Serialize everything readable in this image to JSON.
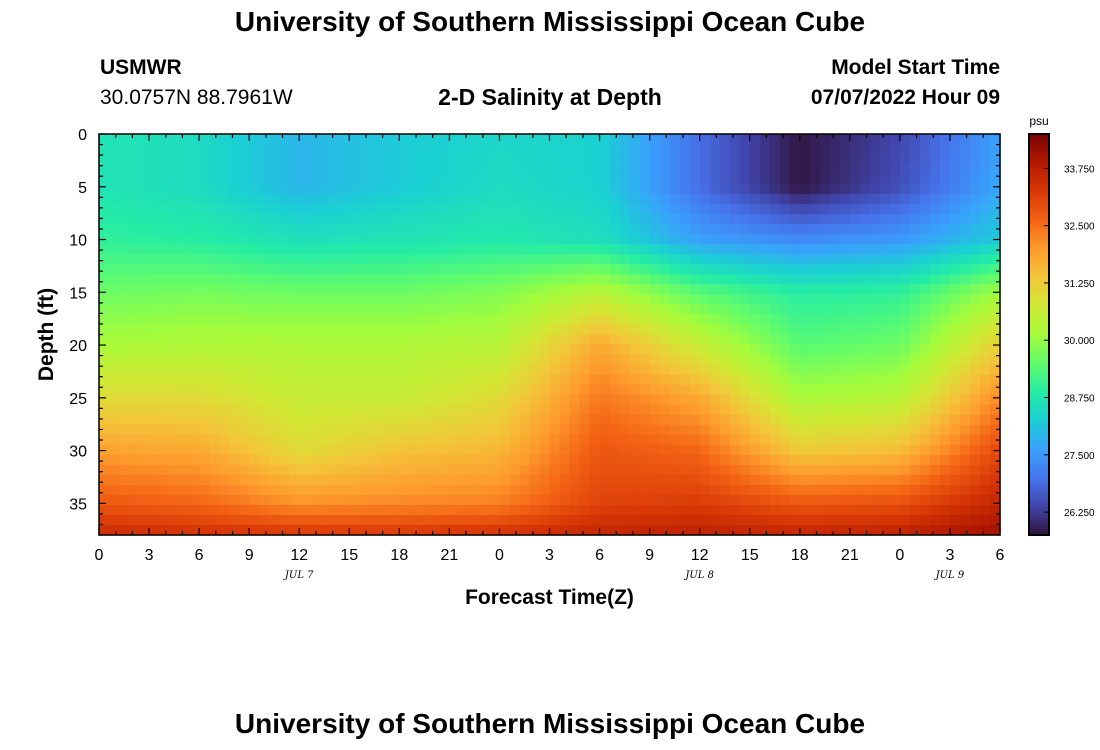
{
  "page": {
    "title_top": "University of Southern Mississippi Ocean Cube",
    "title_bottom": "University of Southern Mississippi Ocean Cube",
    "station": "USMWR",
    "coords": "30.0757N  88.7961W",
    "plot_title": "2-D Salinity at Depth",
    "start_label": "Model Start Time",
    "start_value": "07/07/2022 Hour 09"
  },
  "colors": {
    "palette": [
      "#30123b",
      "#4145ab",
      "#4675ed",
      "#39a2fc",
      "#1bcfd4",
      "#24eca6",
      "#61fc6c",
      "#a4fc3b",
      "#d1e834",
      "#f3c63a",
      "#fe9b2d",
      "#f36315",
      "#d93806",
      "#b11901",
      "#7a0402"
    ]
  },
  "chart_data": {
    "type": "heatmap",
    "title": "2-D Salinity at Depth",
    "xlabel": "Forecast Time(Z)",
    "ylabel": "Depth (ft)",
    "x_ticks": [
      "0",
      "3",
      "6",
      "9",
      "12",
      "15",
      "18",
      "21",
      "0",
      "3",
      "6",
      "9",
      "12",
      "15",
      "18",
      "21",
      "0",
      "3",
      "6"
    ],
    "x_range_hours": [
      0,
      54
    ],
    "date_labels": [
      {
        "label": "JUL 7",
        "hour": 12
      },
      {
        "label": "JUL 8",
        "hour": 36
      },
      {
        "label": "JUL 9",
        "hour": 51
      }
    ],
    "y_ticks": [
      0,
      5,
      10,
      15,
      20,
      25,
      30,
      35
    ],
    "y_range_ft": [
      0,
      38
    ],
    "colorbar": {
      "unit": "psu",
      "range": [
        25.75,
        34.5
      ],
      "ticks": [
        "26.250",
        "27.500",
        "28.750",
        "30.000",
        "31.250",
        "32.500",
        "33.750"
      ]
    },
    "grid_hours": [
      0,
      6,
      12,
      18,
      24,
      30,
      36,
      42,
      48,
      54
    ],
    "grid_depths_ft": [
      0,
      5,
      10,
      15,
      20,
      25,
      30,
      35,
      38
    ],
    "salinity_psu": [
      [
        28.7,
        28.5,
        27.9,
        28.2,
        28.4,
        28.3,
        26.9,
        25.8,
        26.4,
        27.6
      ],
      [
        28.7,
        28.5,
        27.9,
        28.2,
        28.5,
        28.3,
        26.9,
        25.8,
        26.5,
        27.7
      ],
      [
        29.0,
        28.9,
        28.6,
        28.7,
        28.8,
        28.6,
        27.6,
        27.3,
        27.5,
        28.2
      ],
      [
        29.6,
        29.7,
        29.6,
        29.6,
        29.8,
        30.4,
        29.4,
        28.9,
        29.0,
        30.1
      ],
      [
        30.2,
        30.3,
        30.3,
        30.3,
        30.4,
        31.8,
        30.6,
        29.4,
        29.6,
        31.2
      ],
      [
        31.0,
        31.0,
        30.6,
        30.6,
        31.0,
        32.4,
        31.8,
        30.2,
        30.4,
        32.2
      ],
      [
        31.9,
        31.8,
        31.0,
        31.4,
        31.6,
        32.8,
        32.6,
        31.3,
        31.5,
        33.0
      ],
      [
        32.8,
        32.6,
        32.1,
        32.2,
        32.3,
        33.1,
        33.2,
        32.8,
        32.9,
        33.6
      ],
      [
        33.5,
        33.4,
        33.3,
        33.3,
        33.4,
        33.6,
        33.7,
        33.6,
        33.7,
        34.1
      ]
    ]
  }
}
